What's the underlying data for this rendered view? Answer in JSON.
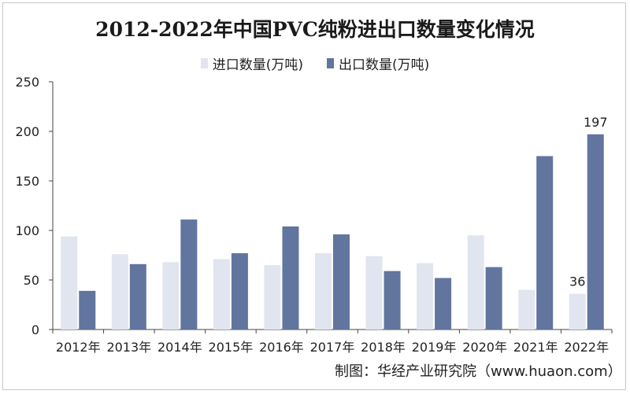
{
  "colors": {
    "import": "#e1e5ef",
    "export": "#61759f",
    "axis": "#444444"
  },
  "source_text": "制图：华经产业研究院（www.huaon.com）",
  "chart_data": {
    "type": "bar",
    "title": "2012-2022年中国PVC纯粉进出口数量变化情况",
    "categories": [
      "2012年",
      "2013年",
      "2014年",
      "2015年",
      "2016年",
      "2017年",
      "2018年",
      "2019年",
      "2020年",
      "2021年",
      "2022年"
    ],
    "series": [
      {
        "name": "进口数量(万吨)",
        "values": [
          94,
          76,
          68,
          71,
          65,
          77,
          74,
          67,
          95,
          40,
          36
        ]
      },
      {
        "name": "出口数量(万吨)",
        "values": [
          39,
          66,
          111,
          77,
          104,
          96,
          59,
          52,
          63,
          175,
          197
        ]
      }
    ],
    "data_labels": [
      {
        "series": 0,
        "index": 10,
        "text": "36"
      },
      {
        "series": 1,
        "index": 10,
        "text": "197"
      }
    ],
    "yticks": [
      0,
      50,
      100,
      150,
      200,
      250
    ],
    "ylim": [
      0,
      250
    ],
    "grid": false,
    "legend_position": "top-center"
  }
}
